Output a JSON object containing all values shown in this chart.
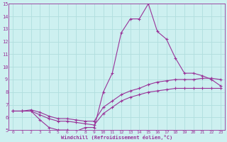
{
  "xlabel": "Windchill (Refroidissement éolien,°C)",
  "xlim": [
    -0.5,
    23.5
  ],
  "ylim": [
    5,
    15
  ],
  "xticks": [
    0,
    1,
    2,
    3,
    4,
    5,
    6,
    7,
    8,
    9,
    10,
    11,
    12,
    13,
    14,
    15,
    16,
    17,
    18,
    19,
    20,
    21,
    22,
    23
  ],
  "yticks": [
    5,
    6,
    7,
    8,
    9,
    10,
    11,
    12,
    13,
    14,
    15
  ],
  "bg_color": "#cdf0f0",
  "line_color": "#993399",
  "grid_color": "#b0dede",
  "line1_x": [
    0,
    1,
    2,
    3,
    4,
    5,
    6,
    7,
    8,
    9,
    10,
    11,
    12,
    13,
    14,
    15,
    16,
    17,
    18,
    19,
    20,
    21,
    22,
    23
  ],
  "line1_y": [
    6.5,
    6.5,
    6.5,
    5.8,
    5.2,
    5.0,
    5.0,
    4.9,
    5.2,
    5.2,
    8.0,
    9.5,
    12.7,
    13.8,
    13.8,
    15.0,
    12.8,
    12.2,
    10.7,
    9.5,
    9.5,
    9.3,
    9.0,
    8.5
  ],
  "line2_x": [
    0,
    1,
    2,
    3,
    4,
    5,
    6,
    7,
    8,
    9,
    10,
    11,
    12,
    13,
    14,
    15,
    16,
    17,
    18,
    19,
    20,
    21,
    22,
    23
  ],
  "line2_y": [
    6.5,
    6.5,
    6.6,
    6.4,
    6.1,
    5.9,
    5.9,
    5.8,
    5.7,
    5.7,
    6.8,
    7.3,
    7.8,
    8.1,
    8.3,
    8.6,
    8.8,
    8.9,
    9.0,
    9.0,
    9.0,
    9.1,
    9.1,
    9.0
  ],
  "line3_x": [
    0,
    1,
    2,
    3,
    4,
    5,
    6,
    7,
    8,
    9,
    10,
    11,
    12,
    13,
    14,
    15,
    16,
    17,
    18,
    19,
    20,
    21,
    22,
    23
  ],
  "line3_y": [
    6.5,
    6.5,
    6.5,
    6.2,
    5.9,
    5.7,
    5.7,
    5.6,
    5.5,
    5.4,
    6.3,
    6.8,
    7.3,
    7.6,
    7.8,
    8.0,
    8.1,
    8.2,
    8.3,
    8.3,
    8.3,
    8.3,
    8.3,
    8.3
  ]
}
